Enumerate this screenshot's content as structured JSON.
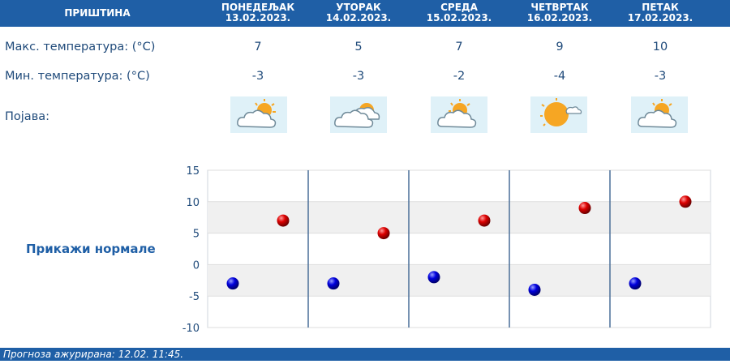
{
  "header": {
    "city": "ПРИШТИНА",
    "days": [
      {
        "name": "ПОНЕДЕЉАК",
        "date": "13.02.2023."
      },
      {
        "name": "УТОРАК",
        "date": "14.02.2023."
      },
      {
        "name": "СРЕДА",
        "date": "15.02.2023."
      },
      {
        "name": "ЧЕТВРТАК",
        "date": "16.02.2023."
      },
      {
        "name": "ПЕТАК",
        "date": "17.02.2023."
      }
    ]
  },
  "rows": {
    "max_label": "Макс. температура: (°C)",
    "min_label": "Мин. температура: (°C)",
    "phenomenon_label": "Појава:"
  },
  "max_temps": [
    "7",
    "5",
    "7",
    "9",
    "10"
  ],
  "min_temps": [
    "-3",
    "-3",
    "-2",
    "-4",
    "-3"
  ],
  "weather_icons": [
    "partly-cloudy-icon",
    "mostly-cloudy-icon",
    "partly-cloudy-icon",
    "sunny-intervals-icon",
    "partly-cloudy-icon"
  ],
  "show_normals_label": "Прикажи нормале",
  "footer": {
    "updated": "Прогноза ажурирана:  12.02. 11:45."
  },
  "colors": {
    "accent": "#1f5fa6",
    "max_dot": "#cc0000",
    "min_dot": "#0000cc"
  },
  "chart_data": {
    "type": "scatter",
    "title": "",
    "xlabel": "",
    "ylabel": "",
    "ylim": [
      -10,
      15
    ],
    "yticks": [
      15,
      10,
      5,
      0,
      -5,
      -10
    ],
    "categories": [
      "13.02.2023.",
      "14.02.2023.",
      "15.02.2023.",
      "16.02.2023.",
      "17.02.2023."
    ],
    "series": [
      {
        "values": [
          7,
          5,
          7,
          9,
          10
        ]
      },
      {
        "values": [
          -3,
          -3,
          -2,
          -4,
          -3
        ]
      }
    ],
    "grid": true
  }
}
